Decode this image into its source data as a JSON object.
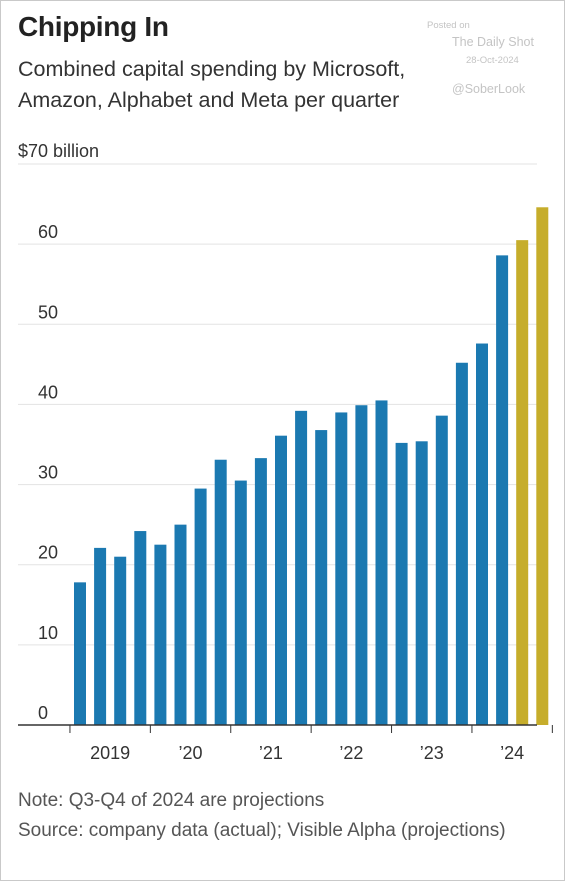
{
  "header": {
    "title": "Chipping In",
    "subtitle": "Combined capital spending by Microsoft, Amazon, Alphabet and Meta per quarter"
  },
  "watermark": {
    "line1": "Posted on",
    "line2": "The Daily Shot",
    "line3": "28-Oct-2024",
    "line4": "@SoberLook"
  },
  "footer": {
    "note": "Note: Q3-Q4 of 2024 are projections",
    "source": "Source: company data (actual); Visible Alpha (projections)"
  },
  "colors": {
    "actual": "#1b79b1",
    "projection": "#c6ad2b",
    "grid": "#e3e3e3",
    "axis": "#333333"
  },
  "chart_data": {
    "type": "bar",
    "unit_label": "$70 billion",
    "ylim": [
      0,
      70
    ],
    "y_ticks": [
      0,
      10,
      20,
      30,
      40,
      50,
      60,
      70
    ],
    "y_tick_labels": [
      "0",
      "10",
      "20",
      "30",
      "40",
      "50",
      "60",
      "$70 billion"
    ],
    "grid": true,
    "categories": [
      "2019 Q1",
      "2019 Q2",
      "2019 Q3",
      "2019 Q4",
      "2020 Q1",
      "2020 Q2",
      "2020 Q3",
      "2020 Q4",
      "2021 Q1",
      "2021 Q2",
      "2021 Q3",
      "2021 Q4",
      "2022 Q1",
      "2022 Q2",
      "2022 Q3",
      "2022 Q4",
      "2023 Q1",
      "2023 Q2",
      "2023 Q3",
      "2023 Q4",
      "2024 Q1",
      "2024 Q2",
      "2024 Q3",
      "2024 Q4"
    ],
    "x_tick_labels": [
      "2019",
      "’20",
      "’21",
      "’22",
      "’23",
      "’24"
    ],
    "series": [
      {
        "values": [
          17.8,
          22.1,
          21.0,
          24.2,
          22.5,
          25.0,
          29.5,
          33.1,
          30.5,
          33.3,
          36.1,
          39.2,
          36.8,
          39.0,
          39.9,
          40.5,
          35.2,
          35.4,
          38.6,
          45.2,
          47.6,
          58.6,
          null,
          null
        ],
        "color": "#1b79b1"
      },
      {
        "values": [
          null,
          null,
          null,
          null,
          null,
          null,
          null,
          null,
          null,
          null,
          null,
          null,
          null,
          null,
          null,
          null,
          null,
          null,
          null,
          null,
          null,
          null,
          60.5,
          64.6
        ],
        "color": "#c6ad2b"
      }
    ]
  }
}
